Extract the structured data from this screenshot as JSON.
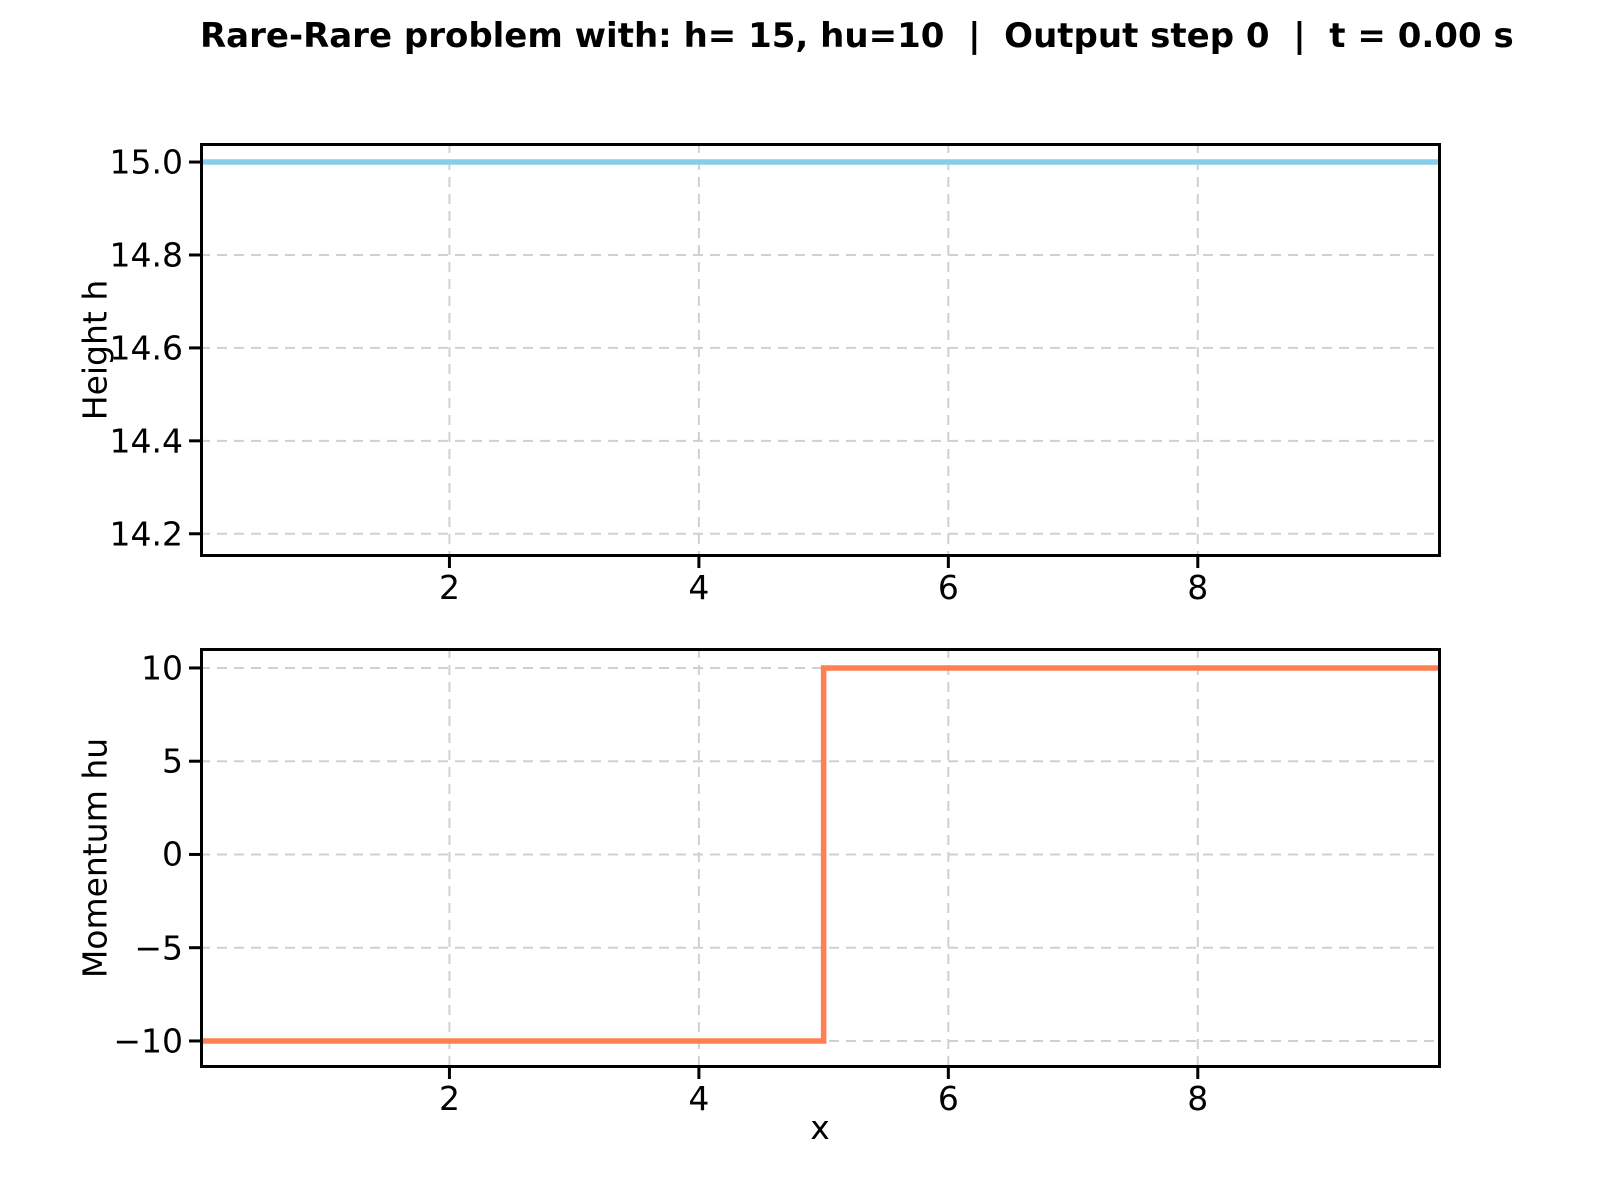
{
  "title": "Rare-Rare problem with: h= 15, hu=10  |  Output step 0  |  t = 0.00 s",
  "colors": {
    "height_line": "#87CEEB",
    "momentum_line": "#FF7F50",
    "grid": "#d0d0d0",
    "spine": "#000000",
    "text": "#000000",
    "background": "#ffffff"
  },
  "chart_data": [
    {
      "type": "line",
      "title": "",
      "xlabel": "",
      "ylabel": "Height h",
      "xlim": [
        0,
        9.95
      ],
      "ylim": [
        14.15,
        15.041
      ],
      "grid": true,
      "grid_style": "dashed",
      "legend": "none",
      "xticks": [
        {
          "v": 2,
          "label": "2"
        },
        {
          "v": 4,
          "label": "4"
        },
        {
          "v": 6,
          "label": "6"
        },
        {
          "v": 8,
          "label": "8"
        }
      ],
      "yticks": [
        {
          "v": 15.0,
          "label": "15.0"
        },
        {
          "v": 14.8,
          "label": "14.8"
        },
        {
          "v": 14.6,
          "label": "14.6"
        },
        {
          "v": 14.4,
          "label": "14.4"
        },
        {
          "v": 14.2,
          "label": "14.2"
        }
      ],
      "series": [
        {
          "name": "height-h",
          "color": "#87CEEB",
          "x": [
            0,
            9.95
          ],
          "y": [
            15,
            15
          ]
        }
      ]
    },
    {
      "type": "step",
      "title": "",
      "xlabel": "x",
      "ylabel": "Momentum hu",
      "xlim": [
        0,
        9.95
      ],
      "ylim": [
        -11.45,
        11.07
      ],
      "grid": true,
      "grid_style": "dashed",
      "legend": "none",
      "xticks": [
        {
          "v": 2,
          "label": "2"
        },
        {
          "v": 4,
          "label": "4"
        },
        {
          "v": 6,
          "label": "6"
        },
        {
          "v": 8,
          "label": "8"
        }
      ],
      "yticks": [
        {
          "v": 10,
          "label": "10"
        },
        {
          "v": 5,
          "label": "5"
        },
        {
          "v": 0,
          "label": "0"
        },
        {
          "v": -5,
          "label": "−5"
        },
        {
          "v": -10,
          "label": "−10"
        }
      ],
      "series": [
        {
          "name": "momentum-hu",
          "color": "#FF7F50",
          "x": [
            0,
            5,
            5,
            9.95
          ],
          "y": [
            -10,
            -10,
            10,
            10
          ]
        }
      ]
    }
  ]
}
